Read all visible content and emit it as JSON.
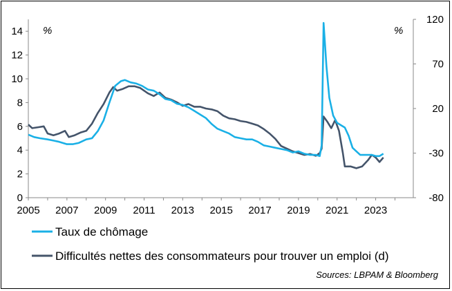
{
  "chart_data": {
    "type": "line",
    "x_ticks": [
      "2005",
      "2007",
      "2009",
      "2011",
      "2013",
      "2015",
      "2017",
      "2019",
      "2021",
      "2023"
    ],
    "y_left": {
      "ticks": [
        "0",
        "2",
        "4",
        "6",
        "8",
        "10",
        "12",
        "14"
      ],
      "ylim": [
        0,
        15
      ],
      "unit": "%"
    },
    "y_right": {
      "ticks": [
        "-80",
        "-30",
        "20",
        "70",
        "120"
      ],
      "ylim": [
        -80,
        120
      ],
      "unit": "%"
    },
    "grid": false,
    "legend_position": "bottom",
    "series": [
      {
        "name": "Taux de chômage",
        "axis": "left",
        "color": "#1ab0e6",
        "points": [
          [
            2005.0,
            5.3
          ],
          [
            2005.3,
            5.1
          ],
          [
            2005.6,
            5.0
          ],
          [
            2006.0,
            4.9
          ],
          [
            2006.3,
            4.8
          ],
          [
            2006.6,
            4.7
          ],
          [
            2007.0,
            4.5
          ],
          [
            2007.3,
            4.5
          ],
          [
            2007.6,
            4.6
          ],
          [
            2008.0,
            4.9
          ],
          [
            2008.3,
            5.0
          ],
          [
            2008.6,
            5.6
          ],
          [
            2008.9,
            6.5
          ],
          [
            2009.2,
            8.0
          ],
          [
            2009.5,
            9.4
          ],
          [
            2009.8,
            9.8
          ],
          [
            2010.0,
            9.9
          ],
          [
            2010.3,
            9.7
          ],
          [
            2010.6,
            9.6
          ],
          [
            2010.9,
            9.4
          ],
          [
            2011.2,
            9.1
          ],
          [
            2011.5,
            9.0
          ],
          [
            2011.8,
            8.7
          ],
          [
            2012.1,
            8.3
          ],
          [
            2012.4,
            8.2
          ],
          [
            2012.7,
            7.9
          ],
          [
            2013.0,
            7.8
          ],
          [
            2013.3,
            7.6
          ],
          [
            2013.6,
            7.3
          ],
          [
            2013.9,
            7.0
          ],
          [
            2014.2,
            6.7
          ],
          [
            2014.5,
            6.2
          ],
          [
            2014.8,
            5.8
          ],
          [
            2015.1,
            5.6
          ],
          [
            2015.4,
            5.4
          ],
          [
            2015.7,
            5.1
          ],
          [
            2016.0,
            5.0
          ],
          [
            2016.3,
            4.9
          ],
          [
            2016.6,
            4.9
          ],
          [
            2016.9,
            4.7
          ],
          [
            2017.2,
            4.4
          ],
          [
            2017.5,
            4.3
          ],
          [
            2017.8,
            4.2
          ],
          [
            2018.1,
            4.1
          ],
          [
            2018.4,
            4.0
          ],
          [
            2018.7,
            3.8
          ],
          [
            2019.0,
            3.9
          ],
          [
            2019.3,
            3.7
          ],
          [
            2019.6,
            3.6
          ],
          [
            2019.9,
            3.6
          ],
          [
            2020.1,
            3.5
          ],
          [
            2020.2,
            4.4
          ],
          [
            2020.3,
            14.7
          ],
          [
            2020.45,
            11.0
          ],
          [
            2020.6,
            8.4
          ],
          [
            2020.8,
            6.9
          ],
          [
            2021.0,
            6.3
          ],
          [
            2021.2,
            6.1
          ],
          [
            2021.4,
            5.9
          ],
          [
            2021.6,
            5.2
          ],
          [
            2021.8,
            4.2
          ],
          [
            2022.0,
            3.9
          ],
          [
            2022.2,
            3.6
          ],
          [
            2022.5,
            3.6
          ],
          [
            2022.8,
            3.6
          ],
          [
            2023.0,
            3.5
          ],
          [
            2023.2,
            3.5
          ],
          [
            2023.4,
            3.7
          ]
        ]
      },
      {
        "name": "Difficultés nettes des consommateurs pour trouver un emploi (d)",
        "axis": "right",
        "color": "#44546a",
        "points": [
          [
            2005.0,
            2
          ],
          [
            2005.2,
            -2
          ],
          [
            2005.5,
            -1
          ],
          [
            2005.8,
            0
          ],
          [
            2006.0,
            -8
          ],
          [
            2006.3,
            -10
          ],
          [
            2006.6,
            -8
          ],
          [
            2006.9,
            -5
          ],
          [
            2007.1,
            -12
          ],
          [
            2007.4,
            -10
          ],
          [
            2007.7,
            -7
          ],
          [
            2008.0,
            -5
          ],
          [
            2008.3,
            3
          ],
          [
            2008.6,
            15
          ],
          [
            2008.9,
            25
          ],
          [
            2009.2,
            38
          ],
          [
            2009.4,
            44
          ],
          [
            2009.6,
            40
          ],
          [
            2009.9,
            42
          ],
          [
            2010.2,
            45
          ],
          [
            2010.5,
            45
          ],
          [
            2010.8,
            43
          ],
          [
            2011.0,
            40
          ],
          [
            2011.2,
            37
          ],
          [
            2011.5,
            34
          ],
          [
            2011.8,
            38
          ],
          [
            2012.1,
            32
          ],
          [
            2012.4,
            30
          ],
          [
            2012.7,
            27
          ],
          [
            2013.0,
            23
          ],
          [
            2013.3,
            25
          ],
          [
            2013.6,
            22
          ],
          [
            2013.9,
            22
          ],
          [
            2014.2,
            20
          ],
          [
            2014.5,
            19
          ],
          [
            2014.8,
            17
          ],
          [
            2015.1,
            12
          ],
          [
            2015.4,
            9
          ],
          [
            2015.7,
            8
          ],
          [
            2016.0,
            6
          ],
          [
            2016.3,
            5
          ],
          [
            2016.6,
            3
          ],
          [
            2016.9,
            1
          ],
          [
            2017.2,
            -3
          ],
          [
            2017.5,
            -8
          ],
          [
            2017.8,
            -14
          ],
          [
            2018.1,
            -22
          ],
          [
            2018.4,
            -25
          ],
          [
            2018.7,
            -28
          ],
          [
            2019.0,
            -30
          ],
          [
            2019.3,
            -32
          ],
          [
            2019.6,
            -31
          ],
          [
            2019.9,
            -33
          ],
          [
            2020.1,
            -30
          ],
          [
            2020.2,
            -25
          ],
          [
            2020.3,
            11
          ],
          [
            2020.5,
            5
          ],
          [
            2020.7,
            -2
          ],
          [
            2020.9,
            7
          ],
          [
            2021.1,
            -5
          ],
          [
            2021.3,
            -30
          ],
          [
            2021.4,
            -45
          ],
          [
            2021.7,
            -45
          ],
          [
            2022.0,
            -47
          ],
          [
            2022.3,
            -45
          ],
          [
            2022.6,
            -38
          ],
          [
            2022.8,
            -32
          ],
          [
            2023.0,
            -35
          ],
          [
            2023.2,
            -40
          ],
          [
            2023.4,
            -35
          ]
        ]
      }
    ]
  },
  "source_note": "Sources: LBPAM & Bloomberg"
}
